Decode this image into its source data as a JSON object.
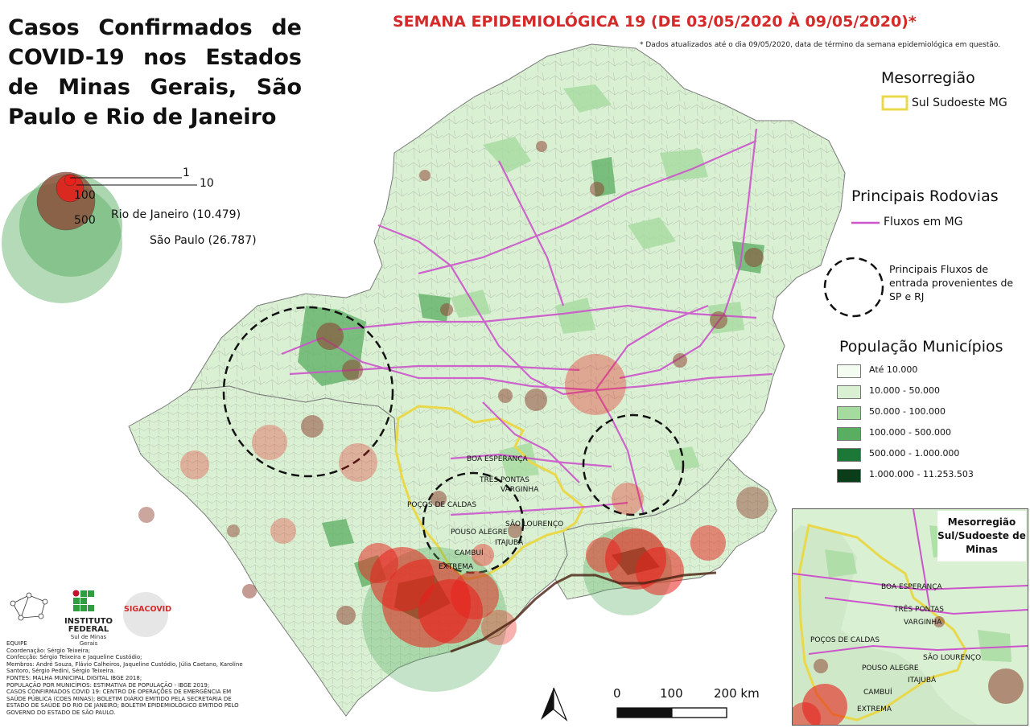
{
  "title": "Casos Confirmados de COVID-19 nos Estados de Minas Gerais, São Paulo e Rio de Janeiro",
  "week_title": "SEMANA EPIDEMIOLÓGICA 19 (DE 03/05/2020 À 09/05/2020)*",
  "note": "* Dados atualizados até o dia 09/05/2020, data de término da semana epidemiológica em questão.",
  "bubble_legend": {
    "sizes": [
      "1",
      "10",
      "100",
      "500"
    ],
    "rio": "Rio de Janeiro (10.479)",
    "sp": "São Paulo (26.787)"
  },
  "legend": {
    "meso_title": "Mesorregião",
    "meso_item": "Sul Sudoeste MG",
    "rod_title": "Principais Rodovias",
    "rod_item": "Fluxos em MG",
    "fluxos": "Principais Fluxos de entrada provenientes de SP e RJ",
    "pop_title": "População Municípios",
    "pop_classes": [
      {
        "label": "Até 10.000",
        "color": "#f4fbf1"
      },
      {
        "label": "10.000 - 50.000",
        "color": "#d9f0d3"
      },
      {
        "label": "50.000 - 100.000",
        "color": "#a6dba0"
      },
      {
        "label": "100.000 - 500.000",
        "color": "#5aae61"
      },
      {
        "label": "500.000 - 1.000.000",
        "color": "#1b7837"
      },
      {
        "label": "1.000.000 - 11.253.503",
        "color": "#0b3d1a"
      }
    ]
  },
  "cities": [
    "BOA ESPERANÇA",
    "TRÊS PONTAS",
    "VARGINHA",
    "POÇOS DE CALDAS",
    "SÃO LOURENÇO",
    "POUSO ALEGRE",
    "ITAJUBÁ",
    "CAMBUÍ",
    "EXTREMA"
  ],
  "inset_title": "Mesorregião Sul/Sudoeste de Minas",
  "scale": {
    "labels": [
      "0",
      "100",
      "200 km"
    ]
  },
  "logos": {
    "institute": "INSTITUTO FEDERAL",
    "institute_sub": "Sul de Minas Gerais",
    "siga": "SIGACOVID"
  },
  "team": [
    "EQUIPE",
    "Coordenação: Sérgio Teixeira;",
    "Confecção: Sérgio Teixeira e Jaqueline Custódio;",
    "Membros: André Souza, Flávio Calheiros, Jaqueline Custódio, Júlia Caetano, Karoline Santoro, Sérgio Pedini, Sérgio Teixeira.",
    "FONTES: MALHA MUNICIPAL DIGITAL IBGE 2018;",
    "POPULAÇÃO POR MUNICÍPIOS: ESTIMATIVA DE POPULAÇÃO - IBGE 2019;",
    "CASOS CONFIRMADOS COVID 19: CENTRO DE OPERAÇÕES DE EMERGÊNCIA EM SAÚDE PÚBLICA (COES MINAS); BOLETIM DIÁRIO EMITIDO PELA SECRETARIA DE ESTADO DE SAÚDE DO RIO DE JANEIRO; BOLETIM EPIDEMIOLÓGICO EMITIDO PELO GOVERNO DO ESTADO DE SÃO PAULO."
  ],
  "colors": {
    "case_bubble": "#e8201a",
    "highway": "#cc55cc",
    "meso_border": "#e8d84a",
    "title_red": "#d42a2a"
  }
}
